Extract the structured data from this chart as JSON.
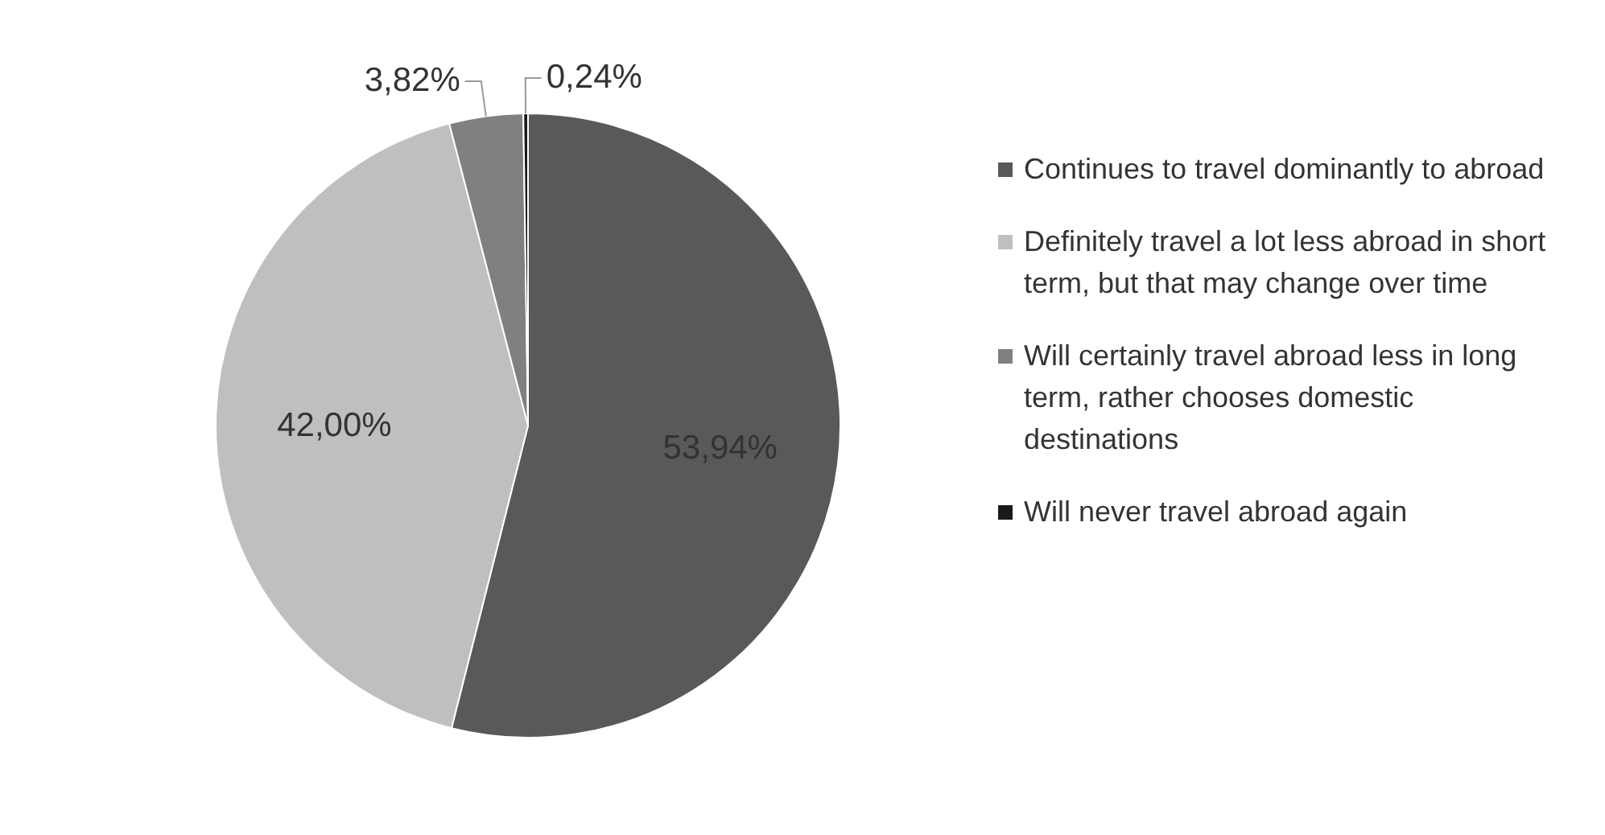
{
  "chart_data": {
    "type": "pie",
    "categories": [
      "Continues to travel dominantly to abroad",
      "Definitely travel a lot less abroad in short term, but that may change over time",
      "Will certainly travel abroad less in long term, rather chooses domestic destinations",
      "Will never travel abroad again"
    ],
    "values": [
      53.94,
      42.0,
      3.82,
      0.24
    ],
    "colors": [
      "#595959",
      "#bfbfbf",
      "#808080",
      "#1a1a1a"
    ],
    "value_labels": [
      "53,94%",
      "42,00%",
      "3,82%",
      "0,24%"
    ],
    "legend": "right"
  }
}
